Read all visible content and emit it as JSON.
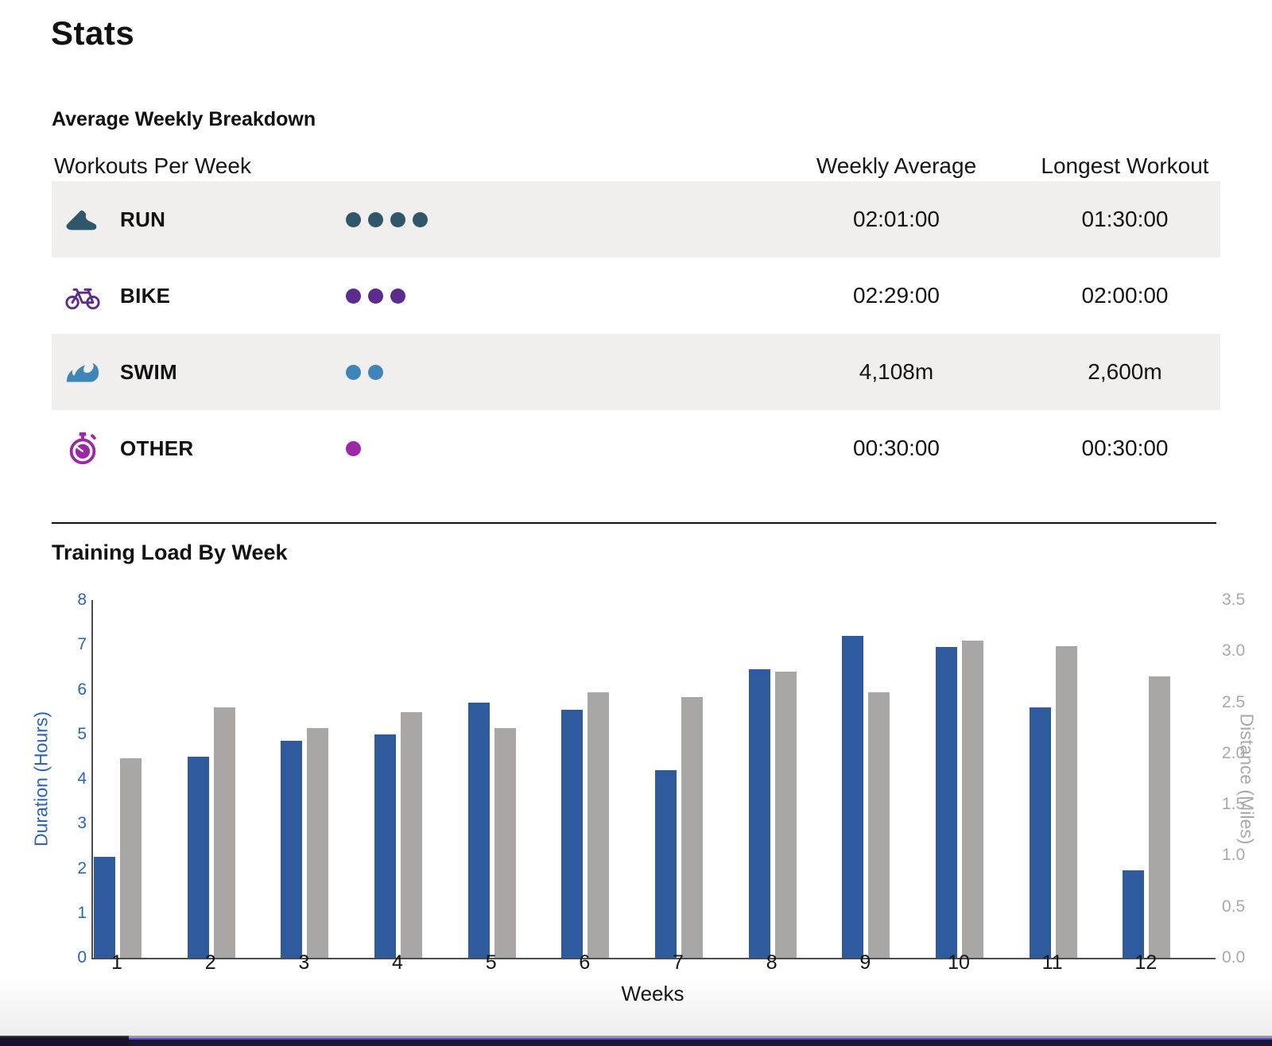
{
  "page": {
    "title": "Stats"
  },
  "breakdown": {
    "heading": "Average Weekly Breakdown",
    "columns": {
      "workouts": "Workouts Per Week",
      "weekly_average": "Weekly Average",
      "longest_workout": "Longest Workout"
    },
    "rows": [
      {
        "sport": "RUN",
        "icon": "run-shoe-icon",
        "color": "#2f5669",
        "dots": 4,
        "weekly_average": "02:01:00",
        "longest_workout": "01:30:00"
      },
      {
        "sport": "BIKE",
        "icon": "bike-icon",
        "color": "#5b2b8f",
        "dots": 3,
        "weekly_average": "02:29:00",
        "longest_workout": "02:00:00"
      },
      {
        "sport": "SWIM",
        "icon": "swim-wave-icon",
        "color": "#3e86ba",
        "dots": 2,
        "weekly_average": "4,108m",
        "longest_workout": "2,600m"
      },
      {
        "sport": "OTHER",
        "icon": "stopwatch-icon",
        "color": "#9c28a8",
        "dots": 1,
        "weekly_average": "00:30:00",
        "longest_workout": "00:30:00"
      }
    ]
  },
  "chart_data": {
    "type": "bar",
    "title": "Training Load By Week",
    "xlabel": "Weeks",
    "categories": [
      "1",
      "2",
      "3",
      "4",
      "5",
      "6",
      "7",
      "8",
      "9",
      "10",
      "11",
      "12"
    ],
    "series": [
      {
        "name": "Duration (Hours)",
        "axis": "left",
        "color": "#2d5b9e",
        "values": [
          2.25,
          4.5,
          4.85,
          5.0,
          5.7,
          5.55,
          4.2,
          6.45,
          7.2,
          6.95,
          5.6,
          1.95
        ]
      },
      {
        "name": "Distance (Miles)",
        "axis": "right",
        "color": "#a8a7a5",
        "values": [
          1.95,
          2.45,
          2.25,
          2.4,
          2.25,
          2.6,
          2.55,
          2.8,
          2.6,
          3.1,
          3.05,
          2.75
        ]
      }
    ],
    "left_axis": {
      "label": "Duration (Hours)",
      "min": 0,
      "max": 8,
      "ticks": [
        "0",
        "1",
        "2",
        "3",
        "4",
        "5",
        "6",
        "7",
        "8"
      ],
      "color": "#2b63bd"
    },
    "right_axis": {
      "label": "Distance (Miles)",
      "min": 0,
      "max": 3.5,
      "ticks": [
        "0.0",
        "0.5",
        "1.0",
        "1.5",
        "2.0",
        "2.5",
        "3.0",
        "3.5"
      ],
      "color": "#a9a9a9"
    },
    "grid": false,
    "legend": false
  },
  "colors": {
    "row_shade": "#f0efee",
    "axis_line": "#4d4d4d",
    "divider": "#111111",
    "band_purple": "#5a48c4",
    "band_navy": "#1b1340"
  }
}
